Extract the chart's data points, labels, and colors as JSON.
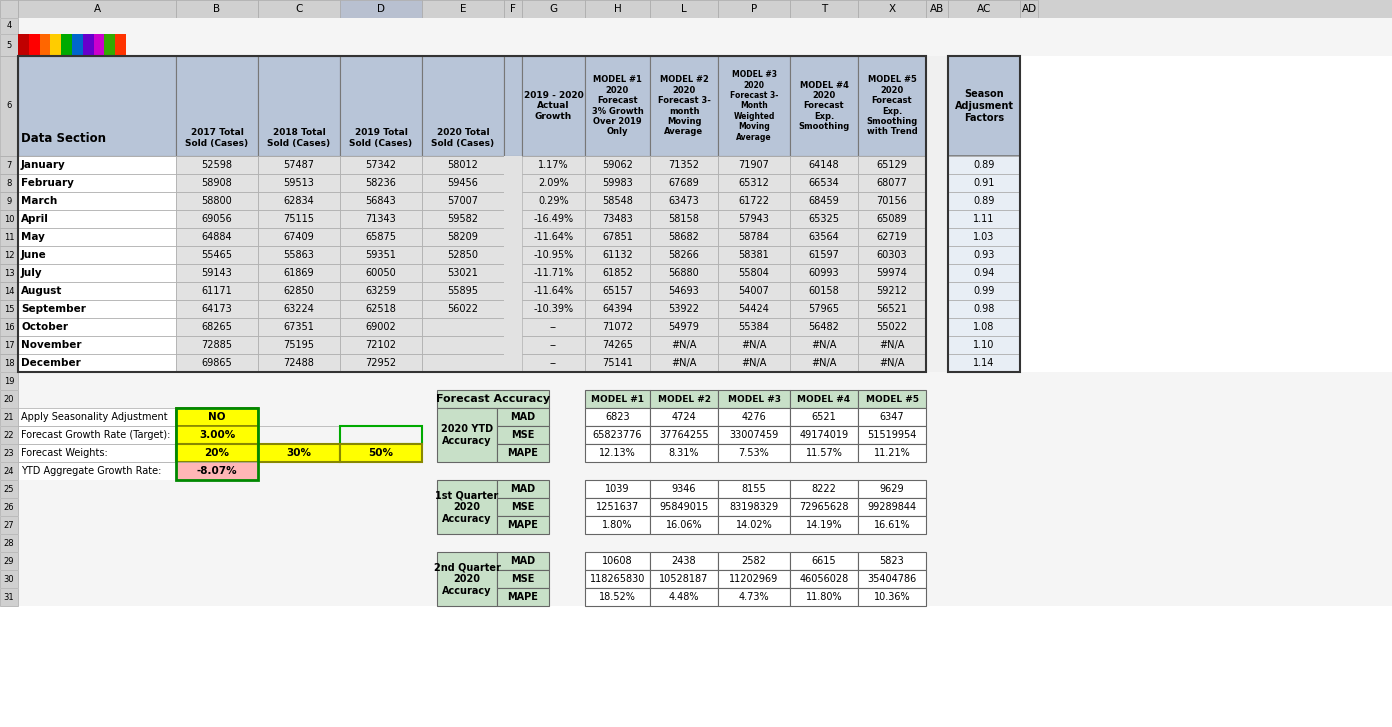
{
  "months": [
    "January",
    "February",
    "March",
    "April",
    "May",
    "June",
    "July",
    "August",
    "September",
    "October",
    "November",
    "December"
  ],
  "col_2017": [
    52598,
    58908,
    58800,
    69056,
    64884,
    55465,
    59143,
    61171,
    64173,
    68265,
    72885,
    69865
  ],
  "col_2018": [
    57487,
    59513,
    62834,
    75115,
    67409,
    55863,
    61869,
    62850,
    63224,
    67351,
    75195,
    72488
  ],
  "col_2019": [
    57342,
    58236,
    56843,
    71343,
    65875,
    59351,
    60050,
    63259,
    62518,
    69002,
    72102,
    72952
  ],
  "col_2020": [
    "58012",
    "59456",
    "57007",
    "59582",
    "58209",
    "52850",
    "53021",
    "55895",
    "56022",
    "",
    "",
    ""
  ],
  "col_growth": [
    "1.17%",
    "2.09%",
    "0.29%",
    "-16.49%",
    "-11.64%",
    "-10.95%",
    "-11.71%",
    "-11.64%",
    "-10.39%",
    "--",
    "--",
    "--"
  ],
  "col_model1": [
    59062,
    59983,
    58548,
    73483,
    67851,
    61132,
    61852,
    65157,
    64394,
    71072,
    74265,
    75141
  ],
  "col_model2": [
    71352,
    67689,
    63473,
    58158,
    58682,
    58266,
    56880,
    54693,
    53922,
    54979,
    "#N/A",
    "#N/A"
  ],
  "col_model3": [
    71907,
    65312,
    61722,
    57943,
    58784,
    58381,
    55804,
    54007,
    54424,
    55384,
    "#N/A",
    "#N/A"
  ],
  "col_model4": [
    64148,
    66534,
    68459,
    65325,
    63564,
    61597,
    60993,
    60158,
    57965,
    56482,
    "#N/A",
    "#N/A"
  ],
  "col_model5": [
    65129,
    68077,
    70156,
    65089,
    62719,
    60303,
    59974,
    59212,
    56521,
    55022,
    "#N/A",
    "#N/A"
  ],
  "col_season": [
    "0.89",
    "0.91",
    "0.89",
    "1.11",
    "1.03",
    "0.93",
    "0.94",
    "0.99",
    "0.98",
    "1.08",
    "1.10",
    "1.14"
  ],
  "row21_label": "Apply Seasonality Adjustment",
  "row21_val": "NO",
  "row22_label": "Forecast Growth Rate (Target):",
  "row22_val": "3.00%",
  "row23_label": "Forecast Weights:",
  "row23_B": "20%",
  "row23_C": "30%",
  "row23_D": "50%",
  "row24_label": "YTD Aggregate Growth Rate:",
  "row24_val": "-8.07%",
  "forecast_ytd_model1": [
    "6823",
    "65823776",
    "12.13%"
  ],
  "forecast_ytd_model2": [
    "4724",
    "37764255",
    "8.31%"
  ],
  "forecast_ytd_model3": [
    "4276",
    "33007459",
    "7.53%"
  ],
  "forecast_ytd_model4": [
    "6521",
    "49174019",
    "11.57%"
  ],
  "forecast_ytd_model5": [
    "6347",
    "51519954",
    "11.21%"
  ],
  "q1_model1": [
    "1039",
    "1251637",
    "1.80%"
  ],
  "q1_model2": [
    "9346",
    "95849015",
    "16.06%"
  ],
  "q1_model3": [
    "8155",
    "83198329",
    "14.02%"
  ],
  "q1_model4": [
    "8222",
    "72965628",
    "14.19%"
  ],
  "q1_model5": [
    "9629",
    "99289844",
    "16.61%"
  ],
  "q2_model1": [
    "10608",
    "118265830",
    "18.52%"
  ],
  "q2_model2": [
    "2438",
    "10528187",
    "4.48%"
  ],
  "q2_model3": [
    "2582",
    "11202969",
    "4.73%"
  ],
  "q2_model4": [
    "6615",
    "46056028",
    "11.80%"
  ],
  "q2_model5": [
    "5823",
    "35404786",
    "10.36%"
  ],
  "blue_header_bg": "#b8c5d8",
  "data_row_bg": "#e2e2e2",
  "white_bg": "#ffffff",
  "col_hdr_bg": "#d0d0d0",
  "col_hdr_sel": "#b8c0d0",
  "row_hdr_bg": "#d0d0d0",
  "yellow_bg": "#ffff00",
  "pink_bg": "#ffb6b6",
  "green_section_bg": "#c8e0c8",
  "season_col_bg": "#b8c5d8",
  "fig_bg": "#f0f0f0"
}
